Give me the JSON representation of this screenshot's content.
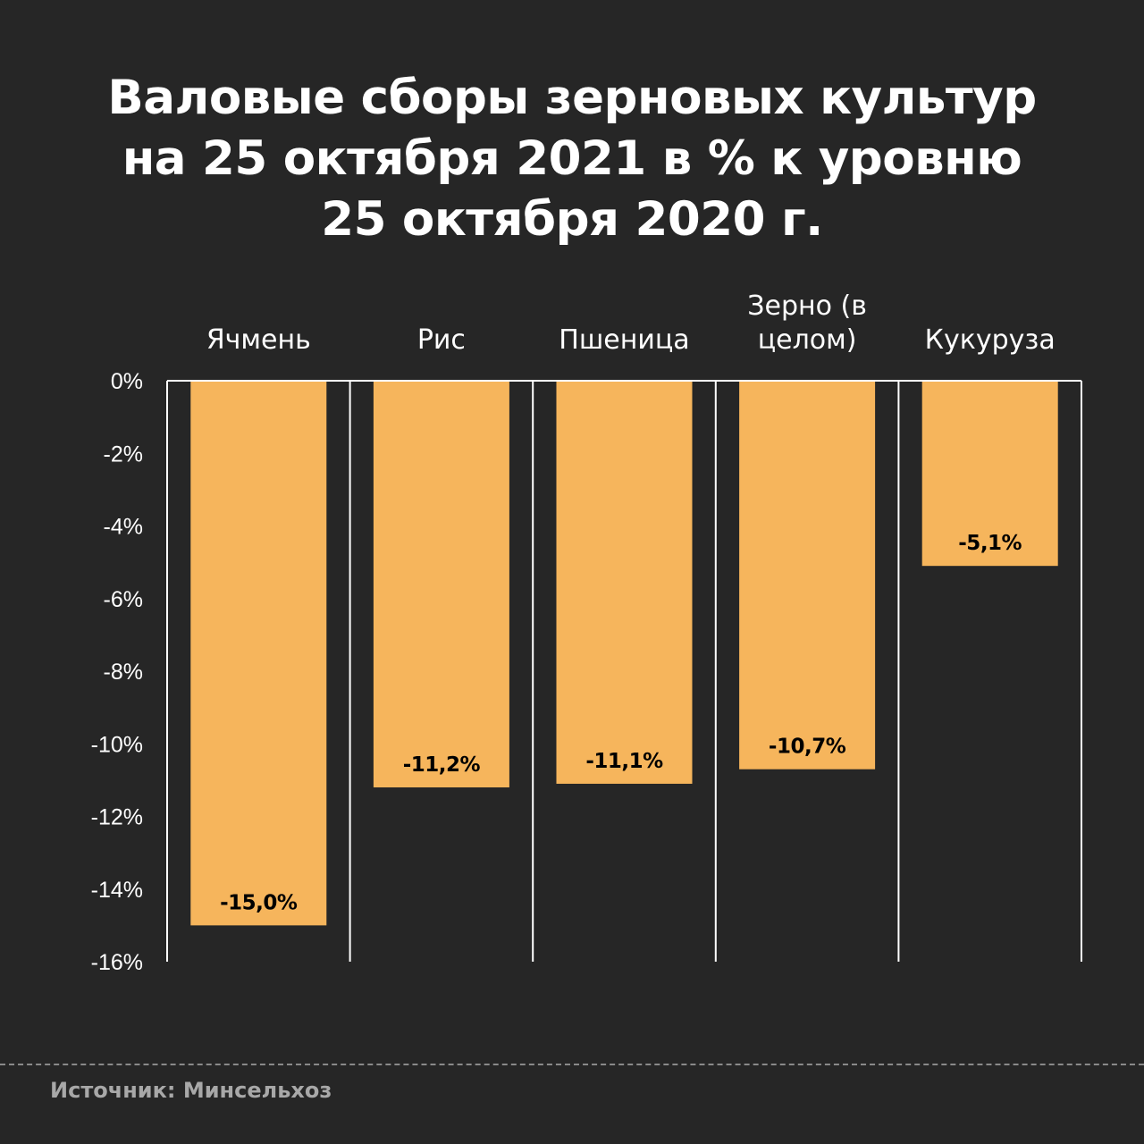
{
  "title_lines": [
    "Валовые сборы зерновых культур",
    "на 25 октября 2021 в % к уровню",
    "25 октября 2020 г."
  ],
  "source": "Источник: Минсельхоз",
  "colors": {
    "background": "#262626",
    "bar": "#F6B55C",
    "text": "#FFFFFF",
    "value_label": "#000000",
    "axis": "#FFFFFF"
  },
  "chart_data": {
    "type": "bar",
    "title": "Валовые сборы зерновых культур на 25 октября 2021 в % к уровню 25 октября 2020 г.",
    "categories": [
      [
        "Ячмень"
      ],
      [
        "Рис"
      ],
      [
        "Пшеница"
      ],
      [
        "Зерно (в",
        "целом)"
      ],
      [
        "Кукуруза"
      ]
    ],
    "values": [
      -15.0,
      -11.2,
      -11.1,
      -10.7,
      -5.1
    ],
    "value_labels": [
      "-15,0%",
      "-11,2%",
      "-11,1%",
      "-10,7%",
      "-5,1%"
    ],
    "ylim": [
      -16,
      0
    ],
    "yticks": [
      0,
      -2,
      -4,
      -6,
      -8,
      -10,
      -12,
      -14,
      -16
    ],
    "ytick_labels": [
      "0%",
      "-2%",
      "-4%",
      "-6%",
      "-8%",
      "-10%",
      "-12%",
      "-14%",
      "-16%"
    ],
    "category_labels_position": "top",
    "grid": false
  }
}
